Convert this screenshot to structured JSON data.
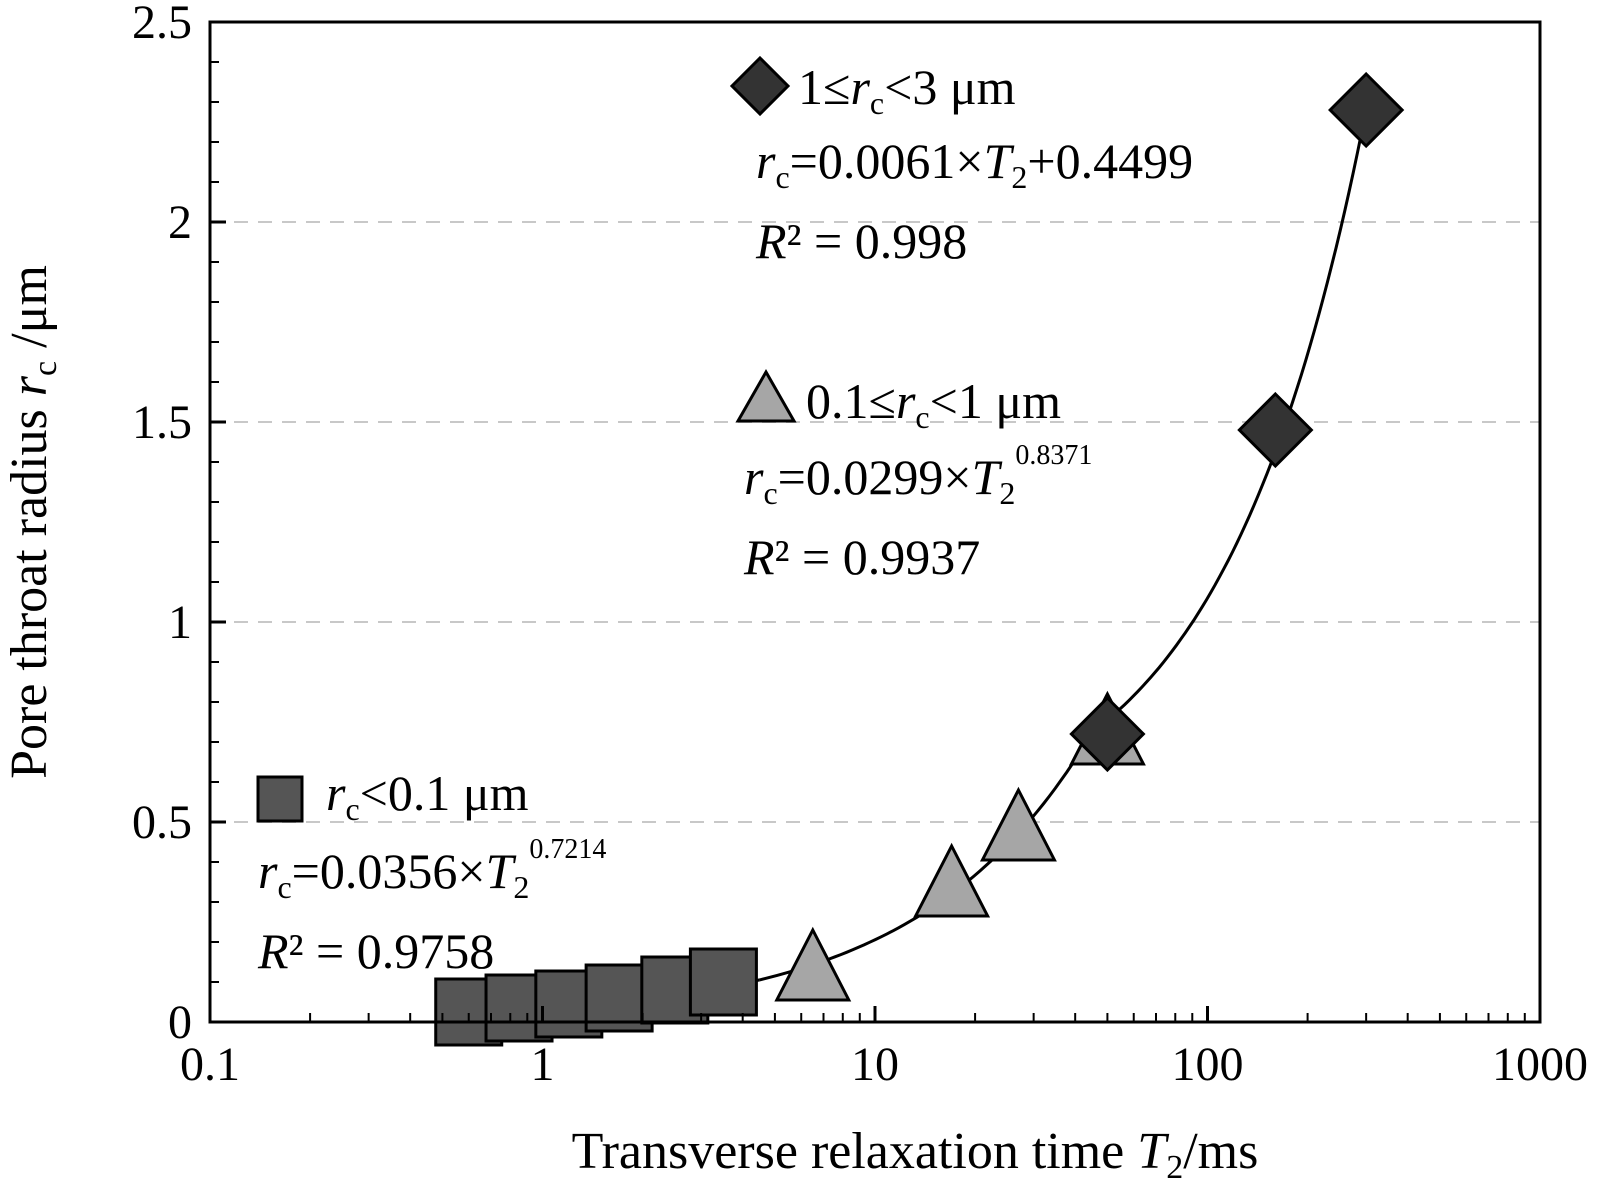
{
  "chart_data": {
    "type": "scatter",
    "title": "",
    "xlabel": {
      "prefix": "Transverse relaxation time ",
      "var": "T",
      "sub": "2",
      "suffix": "/ms"
    },
    "ylabel": {
      "prefix": "Pore throat radius ",
      "var": "r",
      "sub": "c",
      "suffix": " /μm"
    },
    "xscale": "log",
    "xlim": [
      0.1,
      1000
    ],
    "ylim": [
      0,
      2.5
    ],
    "x_ticks": [
      "0.1",
      "1",
      "10",
      "100",
      "1000"
    ],
    "y_ticks": [
      "0",
      "0.5",
      "1",
      "1.5",
      "2",
      "2.5"
    ],
    "grid": "horizontal dashed",
    "series": [
      {
        "name": "r_c<0.1 μm",
        "marker": "square",
        "color": "#555555",
        "x": [
          0.6,
          0.85,
          1.2,
          1.7,
          2.5,
          3.5
        ],
        "y": [
          0.025,
          0.035,
          0.045,
          0.06,
          0.08,
          0.1
        ],
        "fit": {
          "model": "power",
          "a": 0.0356,
          "b": 0.7214,
          "x_range": [
            0.6,
            4.5
          ]
        }
      },
      {
        "name": "0.1≤r_c<1 μm",
        "marker": "triangle",
        "color": "#a6a6a6",
        "x": [
          6.5,
          17,
          27,
          50
        ],
        "y": [
          0.13,
          0.34,
          0.48,
          0.72
        ],
        "fit": {
          "model": "power",
          "a": 0.0299,
          "b": 0.8371,
          "x_range": [
            4.5,
            50
          ]
        }
      },
      {
        "name": "1≤r_c<3 μm",
        "marker": "diamond",
        "color": "#333333",
        "x": [
          50,
          160,
          300
        ],
        "y": [
          0.72,
          1.48,
          2.28
        ],
        "fit": {
          "model": "linear",
          "slope": 0.0061,
          "intercept": 0.4499,
          "x_range": [
            50,
            300
          ]
        }
      }
    ],
    "annotations": {
      "high": {
        "legend": {
          "pre": "1≤",
          "var": "r",
          "sub": "c",
          "post": "<3 μm"
        },
        "equation": {
          "var": "r",
          "sub": "c",
          "mid": "=0.0061×",
          "var2": "T",
          "sub2": "2",
          "post": "+0.4499",
          "exp": ""
        },
        "r2": {
          "var": "R",
          "post": "² = 0.998"
        }
      },
      "mid": {
        "legend": {
          "pre": "0.1≤",
          "var": "r",
          "sub": "c",
          "post": "<1 μm"
        },
        "equation": {
          "var": "r",
          "sub": "c",
          "mid": "=0.0299×",
          "var2": "T",
          "sub2": "2",
          "post": "",
          "exp": "0.8371"
        },
        "r2": {
          "var": "R",
          "post": "² = 0.9937"
        }
      },
      "low": {
        "legend": {
          "pre": "",
          "var": "r",
          "sub": "c",
          "post": "<0.1 μm"
        },
        "equation": {
          "var": "r",
          "sub": "c",
          "mid": "=0.0356×",
          "var2": "T",
          "sub2": "2",
          "post": "",
          "exp": "0.7214"
        },
        "r2": {
          "var": "R",
          "post": "² = 0.9758"
        }
      }
    }
  }
}
